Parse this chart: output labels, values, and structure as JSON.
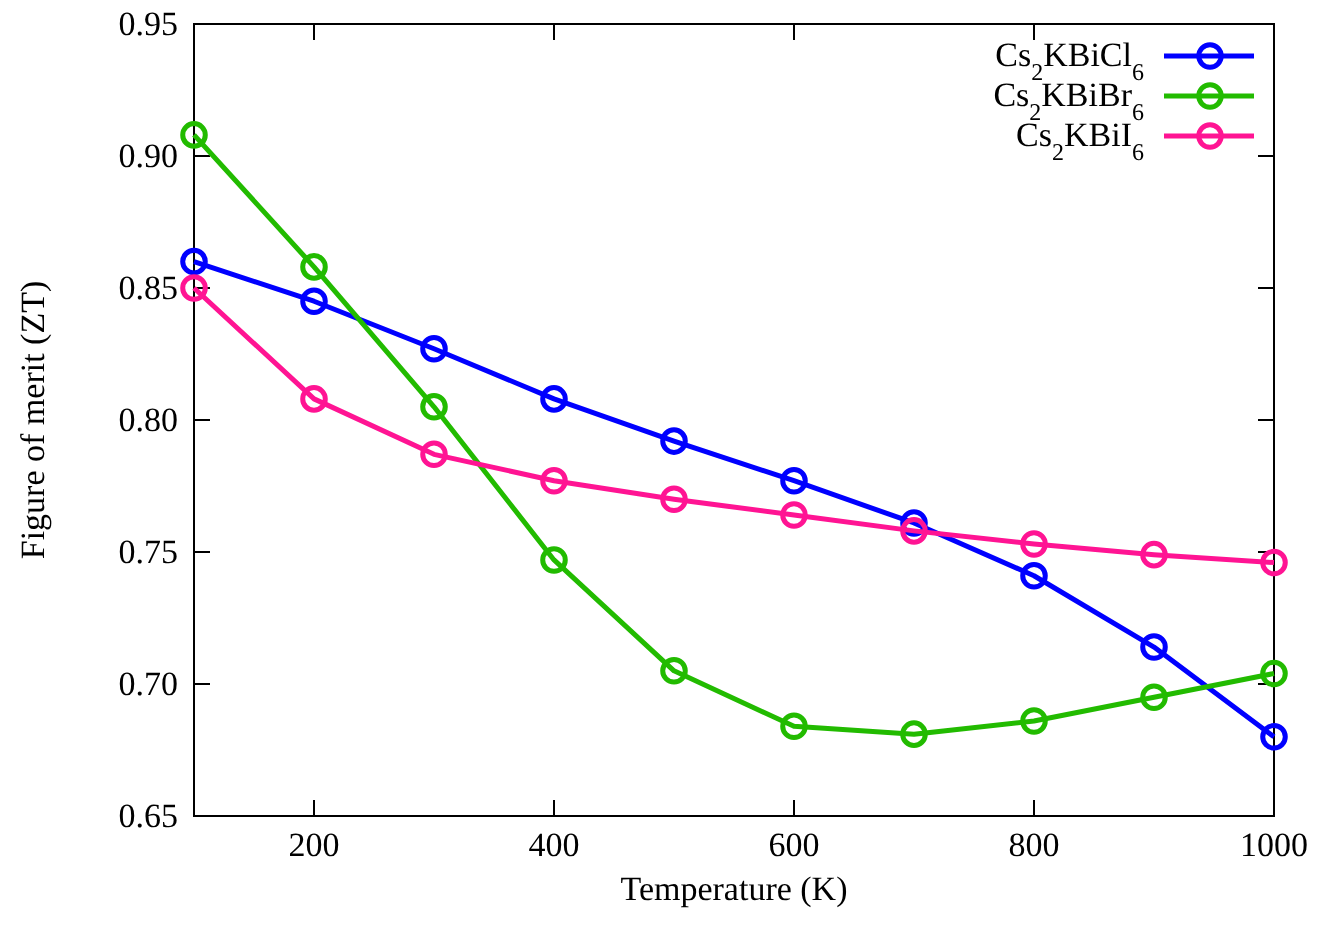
{
  "chart_data": {
    "type": "line",
    "xlabel": "Temperature (K)",
    "ylabel": "Figure of merit (ZT)",
    "x": [
      100,
      200,
      300,
      400,
      500,
      600,
      700,
      800,
      900,
      1000
    ],
    "series": [
      {
        "name": "Cs$_{2}$KBiCl$_{6}$",
        "color": "#0000ff",
        "values": [
          0.86,
          0.845,
          0.827,
          0.808,
          0.792,
          0.777,
          0.761,
          0.741,
          0.714,
          0.68
        ]
      },
      {
        "name": "Cs$_{2}$KBiBr$_{6}$",
        "color": "#22bb00",
        "values": [
          0.908,
          0.858,
          0.805,
          0.747,
          0.705,
          0.684,
          0.681,
          0.686,
          0.695,
          0.704
        ]
      },
      {
        "name": "Cs$_{2}$KBiI$_{6}$",
        "color": "#ff1493",
        "values": [
          0.85,
          0.808,
          0.787,
          0.777,
          0.77,
          0.764,
          0.758,
          0.753,
          0.749,
          0.746
        ]
      }
    ],
    "xlim": [
      100,
      1000
    ],
    "xticks": [
      200,
      400,
      600,
      800,
      1000
    ],
    "ylim": [
      0.65,
      0.95
    ],
    "yticks": [
      {
        "value": 0.65,
        "label": "0.65"
      },
      {
        "value": 0.7,
        "label": "0.70"
      },
      {
        "value": 0.75,
        "label": "0.75"
      },
      {
        "value": 0.8,
        "label": "0.80"
      },
      {
        "value": 0.85,
        "label": "0.85"
      },
      {
        "value": 0.9,
        "label": "0.90"
      },
      {
        "value": 0.95,
        "label": "0.95"
      }
    ],
    "marker": "circle",
    "line_style": "solid",
    "legend": "top right",
    "grid": false
  }
}
